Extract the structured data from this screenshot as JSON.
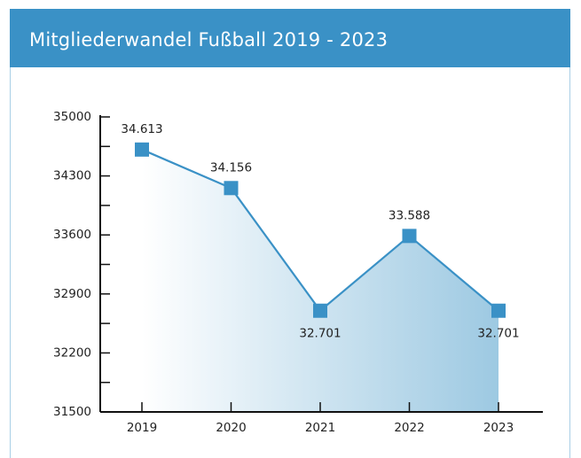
{
  "chart_data": {
    "type": "line",
    "title": "Mitgliederwandel Fußball 2019 - 2023",
    "categories": [
      "2019",
      "2020",
      "2021",
      "2022",
      "2023"
    ],
    "values": [
      34613,
      34156,
      32701,
      33588,
      32701
    ],
    "value_labels": [
      "34.613",
      "34.156",
      "32.701",
      "33.588",
      "32.701"
    ],
    "color": "#3a91c6",
    "ylim": [
      31500,
      35000
    ],
    "yticks": [
      31500,
      32200,
      32900,
      33600,
      34300,
      35000
    ],
    "yminorticks": [
      31850,
      32550,
      33250,
      33950,
      34650
    ],
    "area": true
  }
}
